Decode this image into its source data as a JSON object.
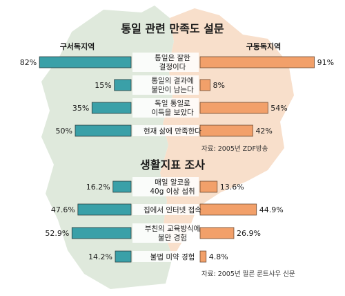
{
  "colors": {
    "west_bar": "#3aa0a8",
    "east_bar": "#f2a06a",
    "west_map": "#dfe9dc",
    "east_map": "#f8dfcb",
    "label_box": "#ffffff",
    "text": "#1a1a1a"
  },
  "chart_data": [
    {
      "type": "bar",
      "title": "통일 관련 만족도 설문",
      "left_header": "구서독지역",
      "right_header": "구동독지역",
      "source": "자료: 2005년 ZDF방송",
      "scale_max": 100,
      "categories": [
        [
          "통일은 잘한",
          "결정이다"
        ],
        [
          "통일의 결과에",
          "불만이 남는다"
        ],
        [
          "독일 통일로",
          "이득을 보았다"
        ],
        [
          "현재 삶에 만족한다"
        ]
      ],
      "series": [
        {
          "name": "구서독지역",
          "values": [
            82,
            15,
            35,
            50
          ],
          "labels": [
            "82%",
            "15%",
            "35%",
            "50%"
          ]
        },
        {
          "name": "구동독지역",
          "values": [
            91,
            8,
            54,
            42
          ],
          "labels": [
            "91%",
            "8%",
            "54%",
            "42%"
          ]
        }
      ]
    },
    {
      "type": "bar",
      "title": "생활지표 조사",
      "source": "자료: 2005년 필른 룬트샤우 신문",
      "scale_max": 100,
      "categories": [
        [
          "매일 알코올",
          "40g 이상 섭취"
        ],
        [
          "집에서 인터넷 접속"
        ],
        [
          "부친의 교육방식에",
          "불만 경험"
        ],
        [
          "불법 미약 경험"
        ]
      ],
      "series": [
        {
          "name": "구서독지역",
          "values": [
            16.2,
            47.6,
            52.9,
            14.2
          ],
          "labels": [
            "16.2%",
            "47.6%",
            "52.9%",
            "14.2%"
          ]
        },
        {
          "name": "구동독지역",
          "values": [
            13.6,
            44.9,
            26.9,
            4.8
          ],
          "labels": [
            "13.6%",
            "44.9%",
            "26.9%",
            "4.8%"
          ]
        }
      ]
    }
  ]
}
